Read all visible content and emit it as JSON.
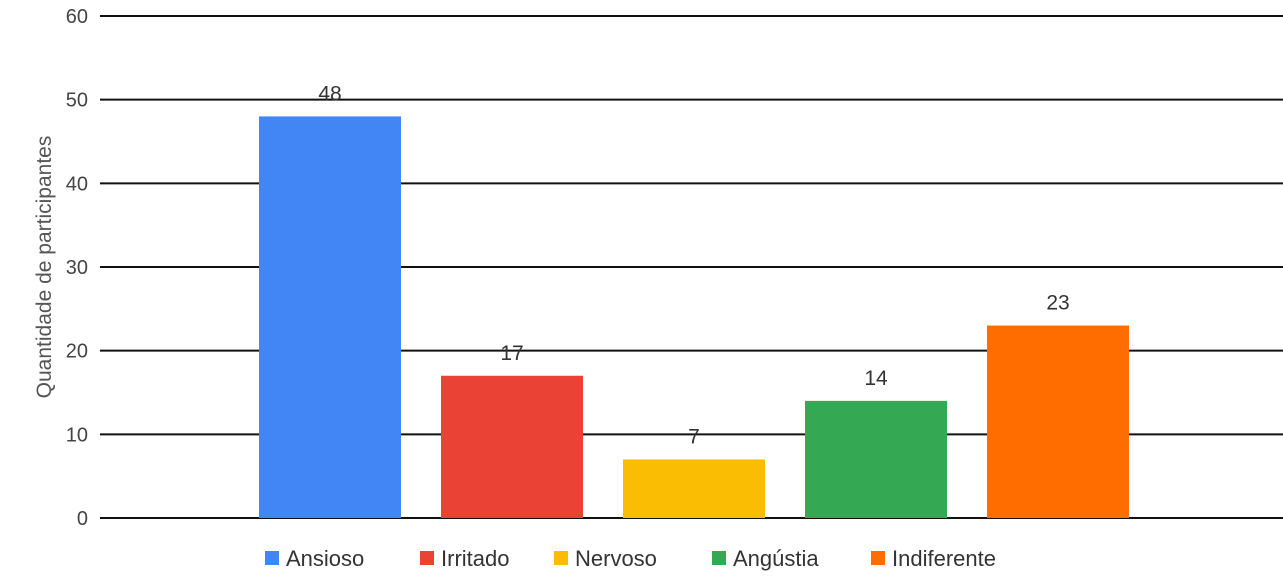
{
  "chart_data": {
    "type": "bar",
    "title": "",
    "xlabel": "",
    "ylabel": "Quantidade de participantes",
    "ylim": [
      0,
      60
    ],
    "yticks": [
      0,
      10,
      20,
      30,
      40,
      50,
      60
    ],
    "grid": true,
    "legend_position": "bottom",
    "categories": [
      "Ansioso",
      "Irritado",
      "Nervoso",
      "Angústia",
      "Indiferente"
    ],
    "values": [
      48,
      17,
      7,
      14,
      23
    ],
    "colors": [
      "#4285f4",
      "#ea4335",
      "#fbbc04",
      "#34a853",
      "#ff6d01"
    ]
  }
}
